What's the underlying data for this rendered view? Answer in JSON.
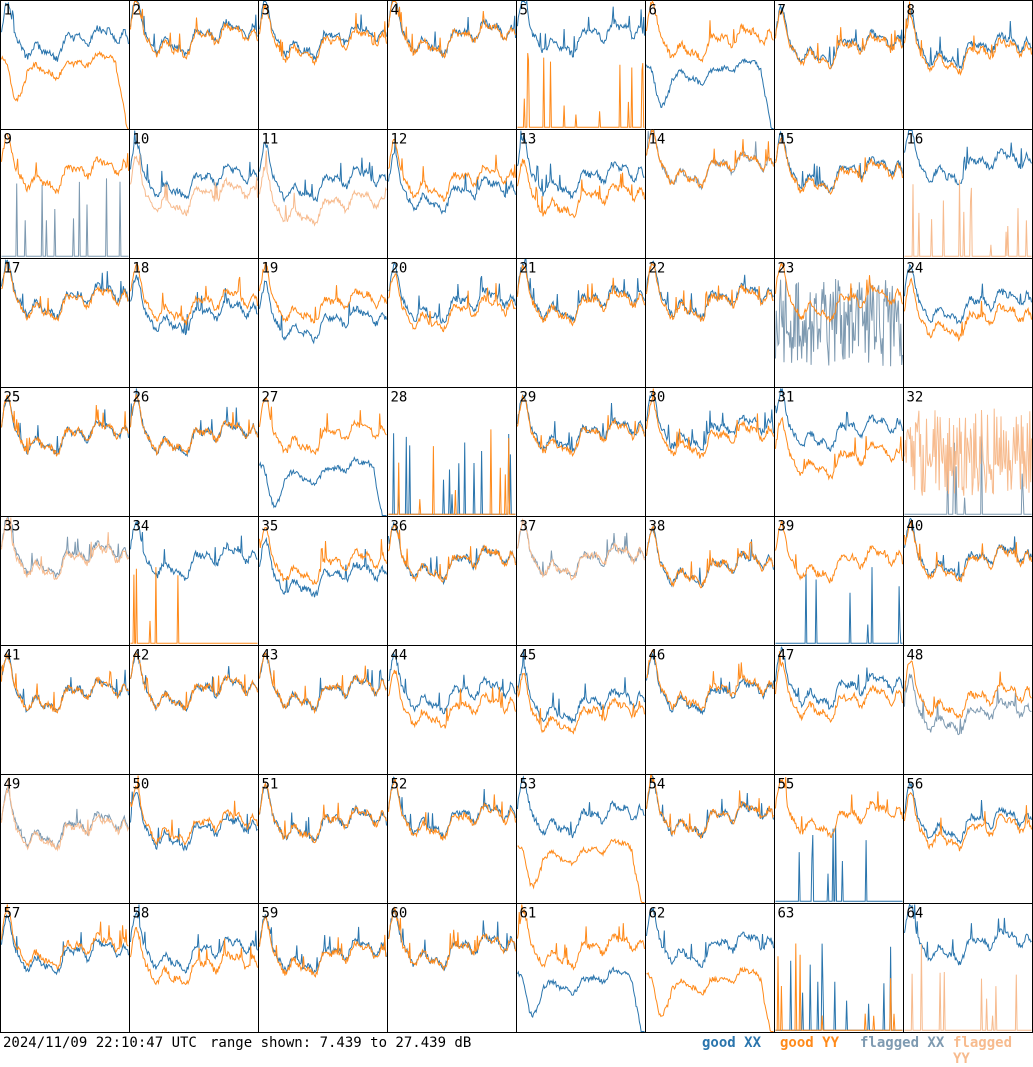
{
  "timestamp": "2024/11/09 22:10:47 UTC",
  "range_text": "range shown: 7.439 to 27.439 dB",
  "legend": {
    "good_xx": "good XX",
    "good_yy": "good YY",
    "flagged_xx": "flagged XX",
    "flagged_yy": "flagged YY"
  },
  "colors": {
    "good_xx": "#2a75ad",
    "good_yy": "#ff8a1a",
    "flagged_xx": "#7e9ab1",
    "flagged_yy": "#f7bb8e"
  },
  "chart_data": {
    "type": "line",
    "layout": "grid 8x8 small multiples",
    "ylim_db": [
      7.439,
      27.439
    ],
    "series_names": [
      "good XX",
      "good YY",
      "flagged XX",
      "flagged YY"
    ],
    "tiles": [
      {
        "id": "1",
        "xx": {
          "status": "good",
          "shape": "normal",
          "level": 0.68
        },
        "yy": {
          "status": "good",
          "shape": "rolloff",
          "level": 0.5
        }
      },
      {
        "id": "2",
        "xx": {
          "status": "good",
          "shape": "normal",
          "level": 0.72
        },
        "yy": {
          "status": "good",
          "shape": "normal",
          "level": 0.7
        }
      },
      {
        "id": "3",
        "xx": {
          "status": "good",
          "shape": "normal",
          "level": 0.7
        },
        "yy": {
          "status": "good",
          "shape": "normal",
          "level": 0.66
        }
      },
      {
        "id": "4",
        "xx": {
          "status": "good",
          "shape": "normal",
          "level": 0.72
        },
        "yy": {
          "status": "good",
          "shape": "normal",
          "level": 0.71
        }
      },
      {
        "id": "5",
        "xx": {
          "status": "good",
          "shape": "normal",
          "level": 0.72
        },
        "yy": {
          "status": "good",
          "shape": "dead",
          "level": 0.0
        }
      },
      {
        "id": "6",
        "xx": {
          "status": "good",
          "shape": "rolloff",
          "level": 0.45
        },
        "yy": {
          "status": "good",
          "shape": "normal",
          "level": 0.68
        }
      },
      {
        "id": "7",
        "xx": {
          "status": "good",
          "shape": "normal",
          "level": 0.64
        },
        "yy": {
          "status": "good",
          "shape": "normal",
          "level": 0.62
        }
      },
      {
        "id": "8",
        "xx": {
          "status": "good",
          "shape": "normal",
          "level": 0.62
        },
        "yy": {
          "status": "good",
          "shape": "normal",
          "level": 0.58
        }
      },
      {
        "id": "9",
        "xx": {
          "status": "flagged",
          "shape": "dead",
          "level": 0.0
        },
        "yy": {
          "status": "good",
          "shape": "normal",
          "level": 0.66
        }
      },
      {
        "id": "10",
        "xx": {
          "status": "good",
          "shape": "normal",
          "level": 0.6
        },
        "yy": {
          "status": "flagged",
          "shape": "normal",
          "level": 0.48
        }
      },
      {
        "id": "11",
        "xx": {
          "status": "good",
          "shape": "normal",
          "level": 0.58
        },
        "yy": {
          "status": "flagged",
          "shape": "normal",
          "level": 0.4
        }
      },
      {
        "id": "12",
        "xx": {
          "status": "good",
          "shape": "normal",
          "level": 0.5
        },
        "yy": {
          "status": "good",
          "shape": "normal",
          "level": 0.6
        }
      },
      {
        "id": "13",
        "xx": {
          "status": "good",
          "shape": "normal",
          "level": 0.62
        },
        "yy": {
          "status": "good",
          "shape": "normal",
          "level": 0.46
        }
      },
      {
        "id": "14",
        "xx": {
          "status": "flagged",
          "shape": "normal",
          "level": 0.7
        },
        "yy": {
          "status": "good",
          "shape": "normal",
          "level": 0.7
        }
      },
      {
        "id": "15",
        "xx": {
          "status": "good",
          "shape": "normal",
          "level": 0.66
        },
        "yy": {
          "status": "good",
          "shape": "normal",
          "level": 0.64
        }
      },
      {
        "id": "16",
        "xx": {
          "status": "good",
          "shape": "normal",
          "level": 0.72
        },
        "yy": {
          "status": "flagged",
          "shape": "dead",
          "level": 0.0
        }
      },
      {
        "id": "17",
        "xx": {
          "status": "good",
          "shape": "normal",
          "level": 0.68
        },
        "yy": {
          "status": "good",
          "shape": "normal",
          "level": 0.66
        }
      },
      {
        "id": "18",
        "xx": {
          "status": "good",
          "shape": "normal",
          "level": 0.56
        },
        "yy": {
          "status": "good",
          "shape": "normal",
          "level": 0.64
        }
      },
      {
        "id": "19",
        "xx": {
          "status": "good",
          "shape": "normal",
          "level": 0.5
        },
        "yy": {
          "status": "good",
          "shape": "normal",
          "level": 0.64
        }
      },
      {
        "id": "20",
        "xx": {
          "status": "good",
          "shape": "normal",
          "level": 0.64
        },
        "yy": {
          "status": "good",
          "shape": "normal",
          "level": 0.58
        }
      },
      {
        "id": "21",
        "xx": {
          "status": "good",
          "shape": "normal",
          "level": 0.66
        },
        "yy": {
          "status": "good",
          "shape": "normal",
          "level": 0.64
        }
      },
      {
        "id": "22",
        "xx": {
          "status": "good",
          "shape": "normal",
          "level": 0.68
        },
        "yy": {
          "status": "good",
          "shape": "normal",
          "level": 0.66
        }
      },
      {
        "id": "23",
        "xx": {
          "status": "flagged",
          "shape": "noisy",
          "level": 0.4
        },
        "yy": {
          "status": "good",
          "shape": "normal",
          "level": 0.66
        }
      },
      {
        "id": "24",
        "xx": {
          "status": "good",
          "shape": "normal",
          "level": 0.64
        },
        "yy": {
          "status": "good",
          "shape": "normal",
          "level": 0.52
        }
      },
      {
        "id": "25",
        "xx": {
          "status": "good",
          "shape": "normal",
          "level": 0.62
        },
        "yy": {
          "status": "good",
          "shape": "normal",
          "level": 0.62
        }
      },
      {
        "id": "26",
        "xx": {
          "status": "good",
          "shape": "normal",
          "level": 0.62
        },
        "yy": {
          "status": "good",
          "shape": "normal",
          "level": 0.62
        }
      },
      {
        "id": "27",
        "xx": {
          "status": "good",
          "shape": "rolloff",
          "level": 0.35
        },
        "yy": {
          "status": "good",
          "shape": "normal",
          "level": 0.62
        }
      },
      {
        "id": "28",
        "xx": {
          "status": "good",
          "shape": "dead",
          "level": 0.0
        },
        "yy": {
          "status": "good",
          "shape": "dead",
          "level": 0.0
        }
      },
      {
        "id": "29",
        "xx": {
          "status": "good",
          "shape": "normal",
          "level": 0.64
        },
        "yy": {
          "status": "good",
          "shape": "normal",
          "level": 0.62
        }
      },
      {
        "id": "30",
        "xx": {
          "status": "good",
          "shape": "normal",
          "level": 0.66
        },
        "yy": {
          "status": "good",
          "shape": "normal",
          "level": 0.6
        }
      },
      {
        "id": "31",
        "xx": {
          "status": "good",
          "shape": "normal",
          "level": 0.66
        },
        "yy": {
          "status": "good",
          "shape": "normal",
          "level": 0.44
        }
      },
      {
        "id": "32",
        "xx": {
          "status": "flagged",
          "shape": "dead",
          "level": 0.0
        },
        "yy": {
          "status": "flagged",
          "shape": "noisy",
          "level": 0.56
        }
      },
      {
        "id": "33",
        "xx": {
          "status": "flagged",
          "shape": "normal",
          "level": 0.68
        },
        "yy": {
          "status": "flagged",
          "shape": "normal",
          "level": 0.66
        }
      },
      {
        "id": "34",
        "xx": {
          "status": "good",
          "shape": "normal",
          "level": 0.66
        },
        "yy": {
          "status": "good",
          "shape": "dead",
          "level": 0.0
        }
      },
      {
        "id": "35",
        "xx": {
          "status": "good",
          "shape": "normal",
          "level": 0.52
        },
        "yy": {
          "status": "good",
          "shape": "normal",
          "level": 0.62
        }
      },
      {
        "id": "36",
        "xx": {
          "status": "good",
          "shape": "normal",
          "level": 0.64
        },
        "yy": {
          "status": "good",
          "shape": "normal",
          "level": 0.64
        }
      },
      {
        "id": "37",
        "xx": {
          "status": "flagged",
          "shape": "normal",
          "level": 0.66
        },
        "yy": {
          "status": "flagged",
          "shape": "normal",
          "level": 0.66
        }
      },
      {
        "id": "38",
        "xx": {
          "status": "good",
          "shape": "normal",
          "level": 0.6
        },
        "yy": {
          "status": "good",
          "shape": "normal",
          "level": 0.6
        }
      },
      {
        "id": "39",
        "xx": {
          "status": "good",
          "shape": "dead",
          "level": 0.0
        },
        "yy": {
          "status": "good",
          "shape": "normal",
          "level": 0.64
        }
      },
      {
        "id": "40",
        "xx": {
          "status": "good",
          "shape": "normal",
          "level": 0.66
        },
        "yy": {
          "status": "good",
          "shape": "normal",
          "level": 0.64
        }
      },
      {
        "id": "41",
        "xx": {
          "status": "good",
          "shape": "normal",
          "level": 0.62
        },
        "yy": {
          "status": "good",
          "shape": "normal",
          "level": 0.62
        }
      },
      {
        "id": "42",
        "xx": {
          "status": "good",
          "shape": "normal",
          "level": 0.64
        },
        "yy": {
          "status": "good",
          "shape": "normal",
          "level": 0.64
        }
      },
      {
        "id": "43",
        "xx": {
          "status": "good",
          "shape": "normal",
          "level": 0.64
        },
        "yy": {
          "status": "good",
          "shape": "normal",
          "level": 0.64
        }
      },
      {
        "id": "44",
        "xx": {
          "status": "good",
          "shape": "normal",
          "level": 0.62
        },
        "yy": {
          "status": "good",
          "shape": "normal",
          "level": 0.5
        }
      },
      {
        "id": "45",
        "xx": {
          "status": "good",
          "shape": "normal",
          "level": 0.54
        },
        "yy": {
          "status": "good",
          "shape": "normal",
          "level": 0.46
        }
      },
      {
        "id": "46",
        "xx": {
          "status": "good",
          "shape": "normal",
          "level": 0.62
        },
        "yy": {
          "status": "good",
          "shape": "normal",
          "level": 0.64
        }
      },
      {
        "id": "47",
        "xx": {
          "status": "good",
          "shape": "normal",
          "level": 0.66
        },
        "yy": {
          "status": "good",
          "shape": "normal",
          "level": 0.56
        }
      },
      {
        "id": "48",
        "xx": {
          "status": "flagged",
          "shape": "normal",
          "level": 0.46
        },
        "yy": {
          "status": "good",
          "shape": "normal",
          "level": 0.58
        }
      },
      {
        "id": "49",
        "xx": {
          "status": "flagged",
          "shape": "normal",
          "level": 0.58
        },
        "yy": {
          "status": "flagged",
          "shape": "normal",
          "level": 0.56
        }
      },
      {
        "id": "50",
        "xx": {
          "status": "good",
          "shape": "normal",
          "level": 0.56
        },
        "yy": {
          "status": "good",
          "shape": "normal",
          "level": 0.6
        }
      },
      {
        "id": "51",
        "xx": {
          "status": "good",
          "shape": "normal",
          "level": 0.62
        },
        "yy": {
          "status": "good",
          "shape": "normal",
          "level": 0.62
        }
      },
      {
        "id": "52",
        "xx": {
          "status": "good",
          "shape": "normal",
          "level": 0.66
        },
        "yy": {
          "status": "good",
          "shape": "normal",
          "level": 0.64
        }
      },
      {
        "id": "53",
        "xx": {
          "status": "good",
          "shape": "normal",
          "level": 0.66
        },
        "yy": {
          "status": "good",
          "shape": "rolloff",
          "level": 0.4
        }
      },
      {
        "id": "54",
        "xx": {
          "status": "good",
          "shape": "normal",
          "level": 0.66
        },
        "yy": {
          "status": "good",
          "shape": "normal",
          "level": 0.66
        }
      },
      {
        "id": "55",
        "xx": {
          "status": "good",
          "shape": "dead",
          "level": 0.0
        },
        "yy": {
          "status": "good",
          "shape": "normal",
          "level": 0.66
        }
      },
      {
        "id": "56",
        "xx": {
          "status": "good",
          "shape": "normal",
          "level": 0.62
        },
        "yy": {
          "status": "good",
          "shape": "normal",
          "level": 0.56
        }
      },
      {
        "id": "57",
        "xx": {
          "status": "good",
          "shape": "normal",
          "level": 0.6
        },
        "yy": {
          "status": "good",
          "shape": "normal",
          "level": 0.64
        }
      },
      {
        "id": "58",
        "xx": {
          "status": "good",
          "shape": "normal",
          "level": 0.62
        },
        "yy": {
          "status": "good",
          "shape": "normal",
          "level": 0.5
        }
      },
      {
        "id": "59",
        "xx": {
          "status": "good",
          "shape": "normal",
          "level": 0.6
        },
        "yy": {
          "status": "good",
          "shape": "normal",
          "level": 0.58
        }
      },
      {
        "id": "60",
        "xx": {
          "status": "good",
          "shape": "normal",
          "level": 0.64
        },
        "yy": {
          "status": "good",
          "shape": "normal",
          "level": 0.64
        }
      },
      {
        "id": "61",
        "xx": {
          "status": "good",
          "shape": "rolloff",
          "level": 0.4
        },
        "yy": {
          "status": "good",
          "shape": "normal",
          "level": 0.64
        }
      },
      {
        "id": "62",
        "xx": {
          "status": "good",
          "shape": "normal",
          "level": 0.66
        },
        "yy": {
          "status": "good",
          "shape": "rolloff",
          "level": 0.4
        }
      },
      {
        "id": "63",
        "xx": {
          "status": "good",
          "shape": "dead",
          "level": 0.0
        },
        "yy": {
          "status": "good",
          "shape": "dead",
          "level": 0.0
        }
      },
      {
        "id": "64",
        "xx": {
          "status": "good",
          "shape": "normal",
          "level": 0.68
        },
        "yy": {
          "status": "flagged",
          "shape": "dead",
          "level": 0.0
        }
      }
    ]
  }
}
